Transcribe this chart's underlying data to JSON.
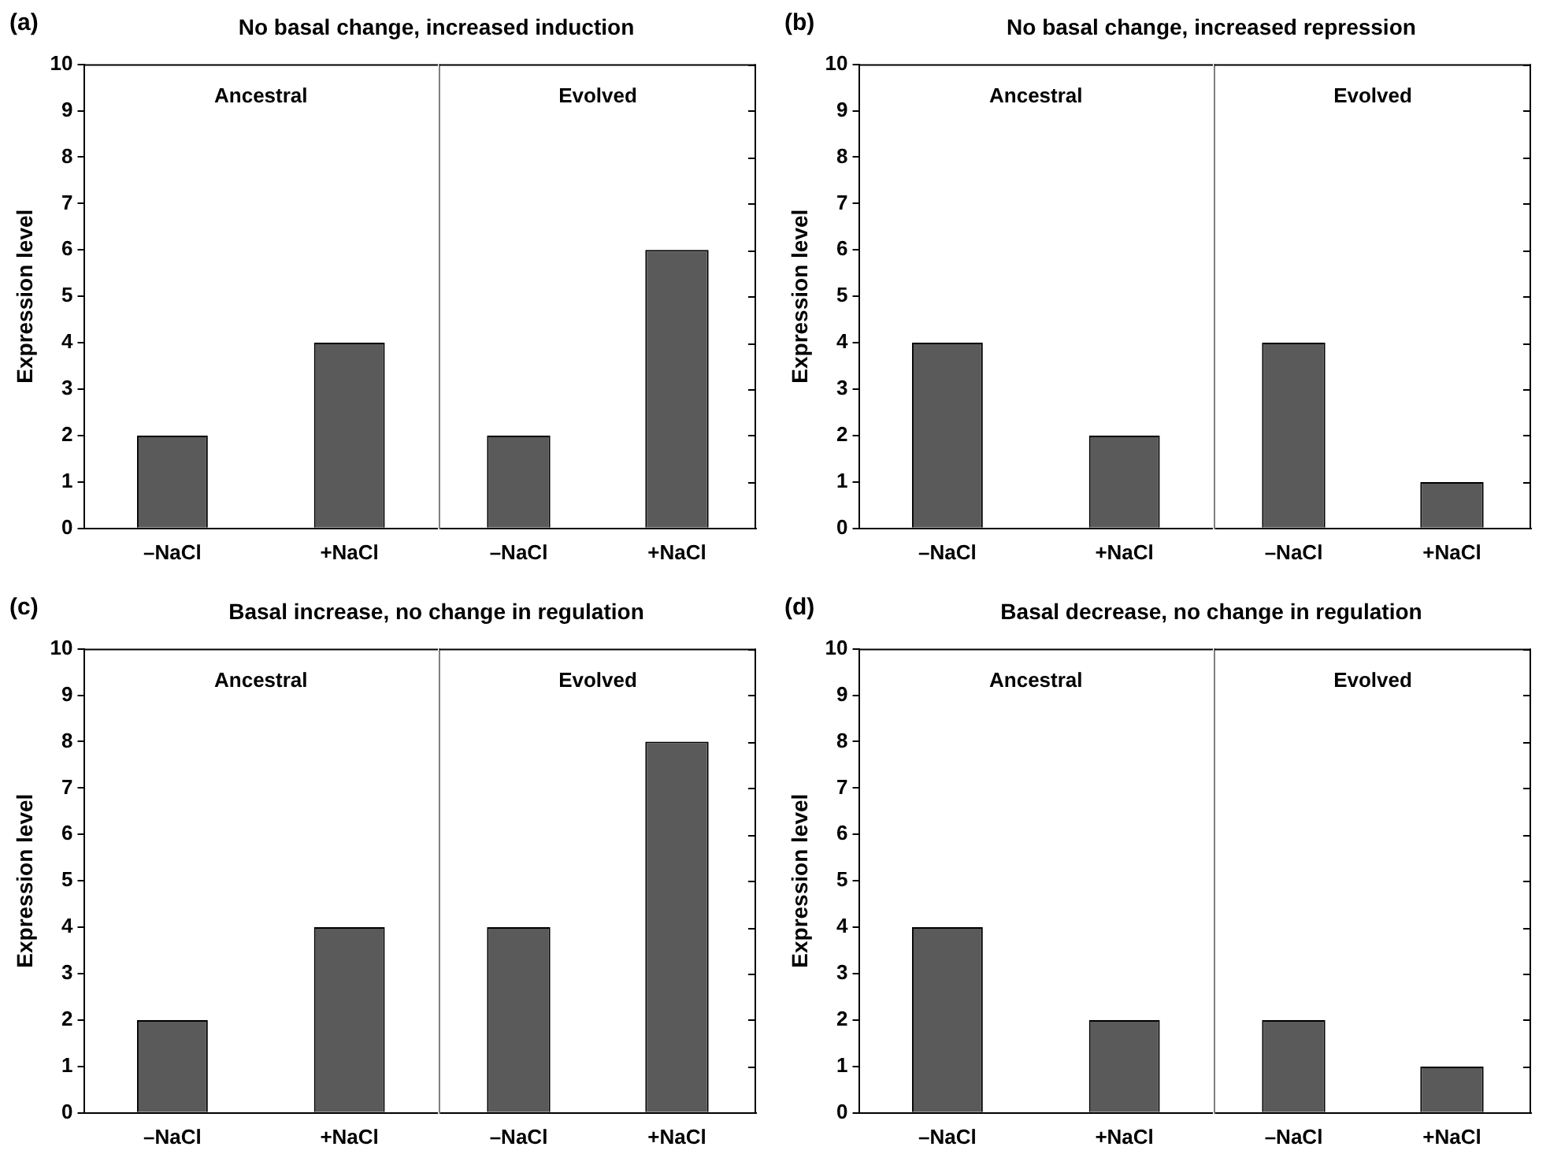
{
  "chart_data": [
    {
      "type": "bar",
      "title": "No basal change, increased induction",
      "ylabel": "Expression level",
      "categories": [
        "–NaCl",
        "+NaCl"
      ],
      "values": [
        2,
        4
      ],
      "color": "#5a5a5a",
      "ylim": [
        0,
        10
      ],
      "yticks": [
        0,
        1,
        2,
        3,
        4,
        5,
        6,
        7,
        8,
        9,
        10
      ],
      "annotations": [
        "(a)",
        "Ancestral"
      ]
    },
    {
      "type": "bar",
      "categories": [
        "–NaCl",
        "+NaCl"
      ],
      "values": [
        2,
        6
      ],
      "color": "#5a5a5a",
      "ylim": [
        0,
        10
      ],
      "yticks": [
        0,
        1,
        2,
        3,
        4,
        5,
        6,
        7,
        8,
        9,
        10
      ],
      "tick_labels": "x",
      "annotations": [
        "Evolved"
      ]
    },
    {
      "type": "bar",
      "title": "No basal change, increased repression",
      "ylabel": "Expression level",
      "categories": [
        "–NaCl",
        "+NaCl"
      ],
      "values": [
        4,
        2
      ],
      "color": "#5a5a5a",
      "ylim": [
        0,
        10
      ],
      "yticks": [
        0,
        1,
        2,
        3,
        4,
        5,
        6,
        7,
        8,
        9,
        10
      ],
      "annotations": [
        "(b)",
        "Ancestral"
      ]
    },
    {
      "type": "bar",
      "categories": [
        "–NaCl",
        "+NaCl"
      ],
      "values": [
        4,
        1
      ],
      "color": "#5a5a5a",
      "ylim": [
        0,
        10
      ],
      "yticks": [
        0,
        1,
        2,
        3,
        4,
        5,
        6,
        7,
        8,
        9,
        10
      ],
      "tick_labels": "x",
      "annotations": [
        "Evolved"
      ]
    },
    {
      "type": "bar",
      "title": "Basal increase, no change in regulation",
      "ylabel": "Expression level",
      "categories": [
        "–NaCl",
        "+NaCl"
      ],
      "values": [
        2,
        4
      ],
      "color": "#5a5a5a",
      "ylim": [
        0,
        10
      ],
      "yticks": [
        0,
        1,
        2,
        3,
        4,
        5,
        6,
        7,
        8,
        9,
        10
      ],
      "annotations": [
        "(c)",
        "Ancestral"
      ]
    },
    {
      "type": "bar",
      "categories": [
        "–NaCl",
        "+NaCl"
      ],
      "values": [
        4,
        8
      ],
      "color": "#5a5a5a",
      "ylim": [
        0,
        10
      ],
      "yticks": [
        0,
        1,
        2,
        3,
        4,
        5,
        6,
        7,
        8,
        9,
        10
      ],
      "tick_labels": "x",
      "annotations": [
        "Evolved"
      ]
    },
    {
      "type": "bar",
      "title": "Basal decrease, no change in regulation",
      "ylabel": "Expression level",
      "categories": [
        "–NaCl",
        "+NaCl"
      ],
      "values": [
        4,
        2
      ],
      "color": "#5a5a5a",
      "ylim": [
        0,
        10
      ],
      "yticks": [
        0,
        1,
        2,
        3,
        4,
        5,
        6,
        7,
        8,
        9,
        10
      ],
      "annotations": [
        "(d)",
        "Ancestral"
      ]
    },
    {
      "type": "bar",
      "categories": [
        "–NaCl",
        "+NaCl"
      ],
      "values": [
        2,
        1
      ],
      "color": "#5a5a5a",
      "ylim": [
        0,
        10
      ],
      "yticks": [
        0,
        1,
        2,
        3,
        4,
        5,
        6,
        7,
        8,
        9,
        10
      ],
      "tick_labels": "x",
      "annotations": [
        "Evolved"
      ]
    }
  ]
}
